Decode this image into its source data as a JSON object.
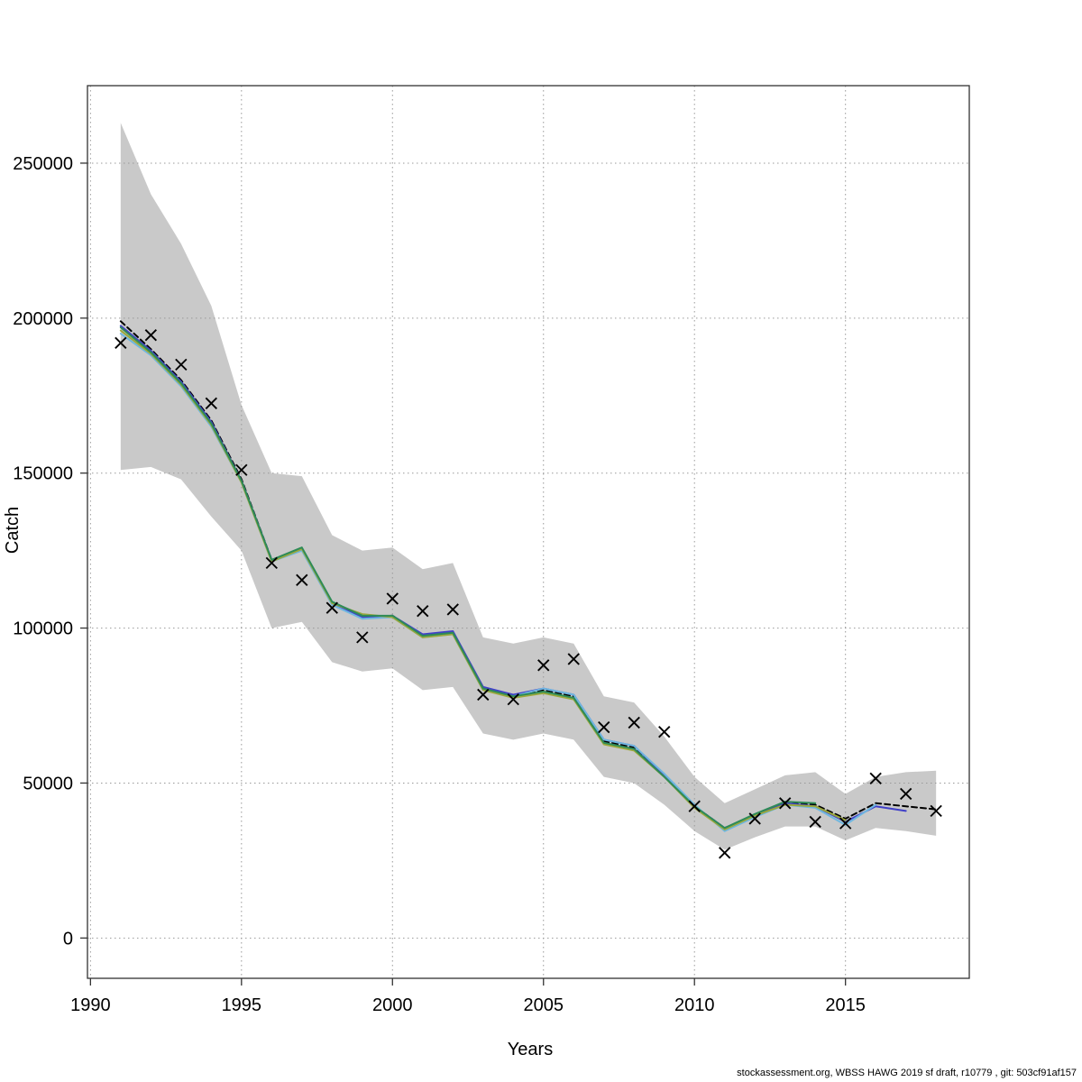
{
  "footer": {
    "credit": "stockassessment.org, WBSS HAWG 2019 sf draft, r10779 , git: 503cf91af157"
  },
  "chart_data": {
    "type": "line",
    "title": "",
    "xlabel": "Years",
    "ylabel": "Catch",
    "xlim": [
      1989.9,
      2019.1
    ],
    "ylim": [
      -13000,
      275000
    ],
    "x_ticks": [
      1990,
      1995,
      2000,
      2005,
      2010,
      2015
    ],
    "y_ticks": [
      0,
      50000,
      100000,
      150000,
      200000,
      250000
    ],
    "grid": true,
    "legend_position": "none",
    "band": {
      "name": "confidence-interval",
      "color": "#c9c9c9",
      "years": [
        1991,
        1992,
        1993,
        1994,
        1995,
        1996,
        1997,
        1998,
        1999,
        2000,
        2001,
        2002,
        2003,
        2004,
        2005,
        2006,
        2007,
        2008,
        2009,
        2010,
        2011,
        2012,
        2013,
        2014,
        2015,
        2016,
        2017,
        2018
      ],
      "upper": [
        263000,
        240000,
        224000,
        204000,
        172000,
        150000,
        149000,
        130000,
        125000,
        126000,
        119000,
        121000,
        97000,
        95000,
        97000,
        95000,
        78000,
        76000,
        65000,
        52000,
        43500,
        48000,
        52500,
        53500,
        46500,
        52000,
        53500,
        54000
      ],
      "lower": [
        151000,
        152000,
        148000,
        136000,
        125000,
        100000,
        102000,
        89000,
        86000,
        87000,
        80000,
        81000,
        66000,
        64000,
        66000,
        64000,
        52000,
        50000,
        43000,
        34500,
        28500,
        32500,
        36000,
        36000,
        31500,
        35500,
        34500,
        33000
      ]
    },
    "observed": {
      "name": "observed-catch",
      "marker": "x",
      "color": "#000000",
      "years": [
        1991,
        1992,
        1993,
        1994,
        1995,
        1996,
        1997,
        1998,
        1999,
        2000,
        2001,
        2002,
        2003,
        2004,
        2005,
        2006,
        2007,
        2008,
        2009,
        2010,
        2011,
        2012,
        2013,
        2014,
        2015,
        2016,
        2017,
        2018
      ],
      "values": [
        192000,
        194500,
        185000,
        172500,
        151000,
        121000,
        115500,
        106500,
        97000,
        109500,
        105500,
        106000,
        78500,
        77000,
        88000,
        90000,
        68000,
        69500,
        66500,
        42500,
        27500,
        38500,
        43500,
        37500,
        37000,
        51500,
        46500,
        41000
      ]
    },
    "series": [
      {
        "name": "fit-final-dashed",
        "color": "#000000",
        "dash": "6,4",
        "years": [
          1991,
          1992,
          1993,
          1994,
          1995,
          1996,
          1997,
          1998,
          1999,
          2000,
          2001,
          2002,
          2003,
          2004,
          2005,
          2006,
          2007,
          2008,
          2009,
          2010,
          2011,
          2012,
          2013,
          2014,
          2015,
          2016,
          2017,
          2018
        ],
        "values": [
          199000,
          190000,
          180000,
          167000,
          148000,
          122000,
          125500,
          108000,
          103500,
          104000,
          97500,
          98500,
          80500,
          78000,
          80000,
          78000,
          63500,
          61500,
          52500,
          42500,
          35500,
          39500,
          43500,
          43000,
          38500,
          43500,
          42500,
          41500
        ]
      },
      {
        "name": "fit-retro-blue",
        "color": "#4040c8",
        "dash": "",
        "years": [
          1991,
          1992,
          1993,
          1994,
          1995,
          1996,
          1997,
          1998,
          1999,
          2000,
          2001,
          2002,
          2003,
          2004,
          2005,
          2006,
          2007,
          2008,
          2009,
          2010,
          2011,
          2012,
          2013,
          2014,
          2015,
          2016,
          2017
        ],
        "values": [
          197500,
          189500,
          179500,
          166500,
          147500,
          122000,
          125500,
          108000,
          103500,
          104000,
          98000,
          99000,
          81000,
          78500,
          80500,
          78500,
          64000,
          62000,
          52500,
          42500,
          35500,
          39500,
          43500,
          42500,
          37500,
          42500,
          41000
        ]
      },
      {
        "name": "fit-retro-cyan",
        "color": "#6fb7e0",
        "dash": "",
        "years": [
          1991,
          1992,
          1993,
          1994,
          1995,
          1996,
          1997,
          1998,
          1999,
          2000,
          2001,
          2002,
          2003,
          2004,
          2005,
          2006,
          2007,
          2008,
          2009,
          2010,
          2011,
          2012,
          2013,
          2014,
          2015,
          2016
        ],
        "values": [
          195000,
          188000,
          178000,
          165000,
          147000,
          121500,
          125000,
          107500,
          103000,
          103500,
          97000,
          98000,
          80000,
          78000,
          80500,
          78500,
          64000,
          62000,
          53000,
          43000,
          34500,
          39000,
          43000,
          42000,
          36500,
          43000
        ]
      },
      {
        "name": "fit-retro-olive",
        "color": "#9ba83b",
        "dash": "",
        "years": [
          1991,
          1992,
          1993,
          1994,
          1995,
          1996,
          1997,
          1998,
          1999,
          2000,
          2001,
          2002,
          2003,
          2004,
          2005,
          2006,
          2007,
          2008,
          2009,
          2010,
          2011,
          2012,
          2013,
          2014,
          2015
        ],
        "values": [
          196000,
          188500,
          178500,
          165500,
          147000,
          121500,
          125500,
          108000,
          104500,
          103500,
          97000,
          98000,
          80000,
          77500,
          79000,
          77000,
          62500,
          60500,
          52000,
          42000,
          35000,
          39500,
          43000,
          42500,
          38000
        ]
      },
      {
        "name": "fit-retro-green",
        "color": "#2e8b57",
        "dash": "",
        "years": [
          1991,
          1992,
          1993,
          1994,
          1995,
          1996,
          1997,
          1998,
          1999,
          2000,
          2001,
          2002,
          2003,
          2004,
          2005,
          2006,
          2007,
          2008,
          2009,
          2010,
          2011,
          2012,
          2013,
          2014
        ],
        "values": [
          197000,
          189000,
          179000,
          166000,
          147500,
          122000,
          126000,
          108500,
          104000,
          104000,
          97500,
          98500,
          80500,
          78000,
          79500,
          77500,
          63000,
          61000,
          52000,
          42500,
          35500,
          40000,
          44000,
          43500
        ]
      }
    ]
  }
}
